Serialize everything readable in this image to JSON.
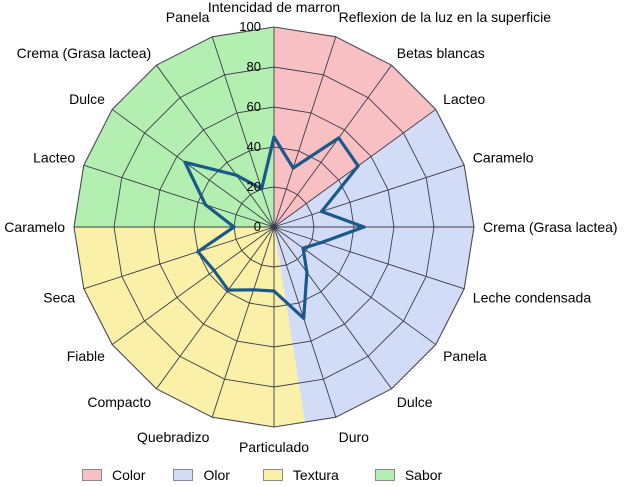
{
  "chart_data": {
    "type": "radar",
    "title": "",
    "rlim": [
      0,
      100
    ],
    "ticks": [
      "0",
      "20",
      "40",
      "60",
      "80",
      "100"
    ],
    "grid": true,
    "legend_position": "bottom",
    "axes": [
      "Intencidad de marron",
      "Reflexion de la luz en la superficie",
      "Betas blancas",
      "Lacteo",
      "Caramelo",
      "Crema (Grasa lactea)",
      "Leche condensada",
      "Panela",
      "Dulce",
      "Duro",
      "Particulado",
      "Quebradizo",
      "Compacto",
      "Fiable",
      "Seca",
      "Caramelo",
      "Lacteo",
      "Dulce",
      "Crema (Grasa lactea)",
      "Panela"
    ],
    "series": [
      {
        "values": [
          45,
          31,
          55,
          52,
          25,
          45,
          25,
          18,
          28,
          48,
          32,
          33,
          39,
          37,
          40,
          20,
          36,
          55,
          32,
          20
        ]
      }
    ],
    "groups": [
      {
        "name": "Color",
        "color": "#f9c0c4",
        "start": 0,
        "end": 3
      },
      {
        "name": "Olor",
        "color": "#d2dcf7",
        "start": 3,
        "end": 9.5
      },
      {
        "name": "Textura",
        "color": "#faf0a8",
        "start": 9.5,
        "end": 15
      },
      {
        "name": "Sabor",
        "color": "#b3efb0",
        "start": 15,
        "end": 20
      }
    ],
    "line_color": "#1a5a8a"
  }
}
